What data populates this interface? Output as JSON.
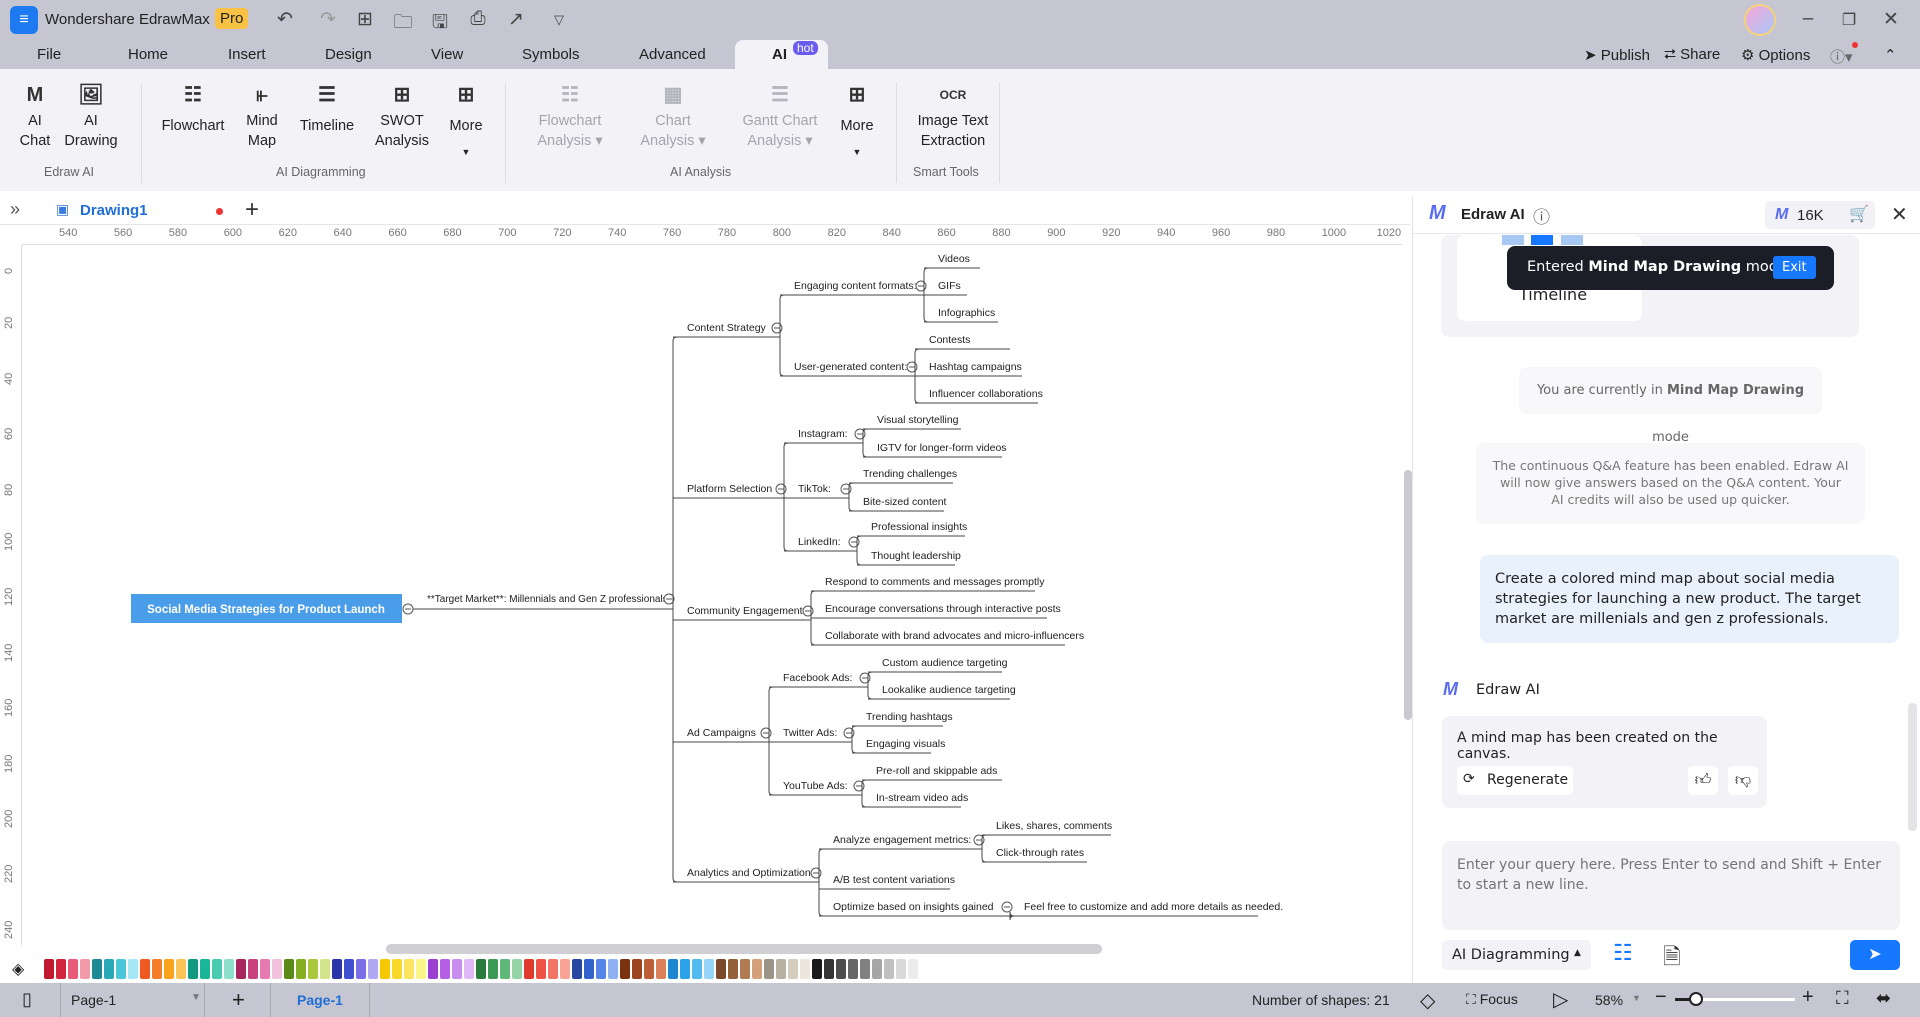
{
  "app": {
    "title": "Wondershare EdrawMax",
    "badge": "Pro"
  },
  "menu": {
    "tabs": [
      "File",
      "Home",
      "Insert",
      "Design",
      "View",
      "Symbols",
      "Advanced",
      "AI"
    ],
    "active": "AI",
    "hot_badge": "hot",
    "right": {
      "publish": "Publish",
      "share": "Share",
      "options": "Options"
    }
  },
  "ribbon": {
    "groups": [
      {
        "label": "Edraw AI",
        "buttons": [
          {
            "l1": "AI",
            "l2": "Chat",
            "icon": "ai-chat-icon"
          },
          {
            "l1": "AI",
            "l2": "Drawing",
            "icon": "ai-drawing-icon"
          }
        ]
      },
      {
        "label": "AI Diagramming",
        "buttons": [
          {
            "l1": "Flowchart",
            "l2": "",
            "icon": "flowchart-icon"
          },
          {
            "l1": "Mind",
            "l2": "Map",
            "icon": "mind-map-icon"
          },
          {
            "l1": "Timeline",
            "l2": "",
            "icon": "timeline-icon"
          },
          {
            "l1": "SWOT",
            "l2": "Analysis",
            "icon": "swot-icon"
          },
          {
            "l1": "More",
            "l2": "",
            "icon": "more-plus-icon"
          }
        ]
      },
      {
        "label": "AI Analysis",
        "buttons": [
          {
            "l1": "Flowchart",
            "l2": "Analysis",
            "icon": "flowchart-analysis-icon"
          },
          {
            "l1": "Chart",
            "l2": "Analysis",
            "icon": "chart-analysis-icon"
          },
          {
            "l1": "Gantt Chart",
            "l2": "Analysis",
            "icon": "gantt-analysis-icon"
          },
          {
            "l1": "More",
            "l2": "",
            "icon": "more-plus-icon"
          }
        ]
      },
      {
        "label": "Smart Tools",
        "buttons": [
          {
            "l1": "Image Text",
            "l2": "Extraction",
            "icon": "ocr-icon"
          }
        ]
      }
    ]
  },
  "document": {
    "tab": "Drawing1"
  },
  "rulers": {
    "top": [
      "540",
      "560",
      "580",
      "600",
      "620",
      "640",
      "660",
      "680",
      "700",
      "720",
      "740",
      "760",
      "780",
      "800",
      "820",
      "840",
      "860",
      "880",
      "900",
      "920",
      "940",
      "960",
      "980",
      "1000",
      "1020"
    ],
    "left": [
      "0",
      "20",
      "40",
      "60",
      "80",
      "100",
      "120",
      "140",
      "160",
      "180",
      "200",
      "220",
      "240"
    ]
  },
  "mind_map": {
    "root": "Social Media Strategies for Product Launch",
    "edge_label": "**Target Market**: Millennials and Gen Z professionals",
    "root_color": "#4a9de9",
    "branches": [
      {
        "label": "Content Strategy",
        "children": [
          {
            "label": "Engaging content formats:",
            "children": [
              {
                "label": "Videos"
              },
              {
                "label": "GIFs"
              },
              {
                "label": "Infographics"
              }
            ]
          },
          {
            "label": "User-generated content:",
            "children": [
              {
                "label": "Contests"
              },
              {
                "label": "Hashtag campaigns"
              },
              {
                "label": "Influencer collaborations"
              }
            ]
          }
        ]
      },
      {
        "label": "Platform Selection",
        "children": [
          {
            "label": "Instagram:",
            "children": [
              {
                "label": "Visual storytelling"
              },
              {
                "label": "IGTV for longer-form videos"
              }
            ]
          },
          {
            "label": "TikTok:",
            "children": [
              {
                "label": "Trending challenges"
              },
              {
                "label": "Bite-sized content"
              }
            ]
          },
          {
            "label": "LinkedIn:",
            "children": [
              {
                "label": "Professional insights"
              },
              {
                "label": "Thought leadership"
              }
            ]
          }
        ]
      },
      {
        "label": "Community Engagement",
        "children": [
          {
            "label": "Respond to comments and messages promptly"
          },
          {
            "label": "Encourage conversations through interactive posts"
          },
          {
            "label": "Collaborate with brand advocates and micro-influencers"
          }
        ]
      },
      {
        "label": "Ad Campaigns",
        "children": [
          {
            "label": "Facebook Ads:",
            "children": [
              {
                "label": "Custom audience targeting"
              },
              {
                "label": "Lookalike audience targeting"
              }
            ]
          },
          {
            "label": "Twitter Ads:",
            "children": [
              {
                "label": "Trending hashtags"
              },
              {
                "label": "Engaging visuals"
              }
            ]
          },
          {
            "label": "YouTube Ads:",
            "children": [
              {
                "label": "Pre-roll and skippable ads"
              },
              {
                "label": "In-stream video ads"
              }
            ]
          }
        ]
      },
      {
        "label": "Analytics and Optimization",
        "children": [
          {
            "label": "Analyze engagement metrics:",
            "children": [
              {
                "label": "Likes, shares, comments"
              },
              {
                "label": "Click-through rates"
              }
            ]
          },
          {
            "label": "A/B test content variations"
          },
          {
            "label": "Optimize based on insights gained",
            "children": [
              {
                "label": "Feel free to customize and add more details as needed."
              }
            ]
          }
        ]
      }
    ]
  },
  "palette": [
    "#c0182f",
    "#d3243d",
    "#e95a78",
    "#f29aa8",
    "#1f8a94",
    "#2aa8b8",
    "#4cc6d9",
    "#a5e6f5",
    "#ef5a22",
    "#f47c2a",
    "#f9a31c",
    "#fbc456",
    "#119a7f",
    "#1bb597",
    "#49cbb0",
    "#8ee0cc",
    "#a6275e",
    "#c9427e",
    "#e47ab0",
    "#f2c2dc",
    "#5c8a18",
    "#86ae22",
    "#a9c83c",
    "#d2e38a",
    "#2a35a8",
    "#3f4fd0",
    "#7a6ee6",
    "#b0a8f2",
    "#f5c800",
    "#f9d82a",
    "#fbe45e",
    "#fbf688",
    "#9b3fd0",
    "#b55ee6",
    "#c98df0",
    "#e0b8f8",
    "#2b7a3e",
    "#3d9a55",
    "#5eb878",
    "#96d4a8",
    "#e03a2e",
    "#ee5244",
    "#f27464",
    "#f8a396",
    "#2747a3",
    "#3462cc",
    "#5585e8",
    "#8fb0f2",
    "#7b3210",
    "#9c4420",
    "#bc5f36",
    "#d98058",
    "#1d86d0",
    "#2aa2e8",
    "#53baf0",
    "#95d6f8",
    "#7a4a2a",
    "#94603a",
    "#b07a52",
    "#d4a07c",
    "#9c9484",
    "#b8b0a0",
    "#d4ccbc",
    "#ece6dc",
    "#1a1a1a",
    "#333333",
    "#4d4d4d",
    "#666666",
    "#808080",
    "#a6a6a6",
    "#c0c0c0",
    "#d9d9d9",
    "#ececec"
  ],
  "status": {
    "page_select": "Page-1",
    "page_tab": "Page-1",
    "shapes": "Number of shapes: 21",
    "focus": "Focus",
    "zoom": "58%",
    "zoom_level": 58
  },
  "ai_panel": {
    "title": "Edraw AI",
    "credits": "16K",
    "card_item": "Timeline",
    "toast": {
      "prefix": "Entered ",
      "bold": "Mind Map Drawing",
      "suffix": " mode",
      "exit": "Exit"
    },
    "mode_notice": {
      "prefix": "You are currently in ",
      "bold": "Mind Map Drawing",
      "suffix": " mode"
    },
    "qa_notice": "The continuous Q&A feature has been enabled. Edraw AI will now give answers based on the Q&A content. Your AI credits will also be used up quicker.",
    "user_message": "Create a colored mind map about social media strategies for launching a new product. The target market are millenials and gen z professionals.",
    "bot_name": "Edraw AI",
    "bot_reply": "A mind map has been created on the canvas.",
    "regenerate": "Regenerate",
    "input_placeholder": "Enter your query here. Press Enter to send and Shift + Enter to start a new line.",
    "mode_select": "AI Diagramming",
    "accent": "#1677ff"
  }
}
